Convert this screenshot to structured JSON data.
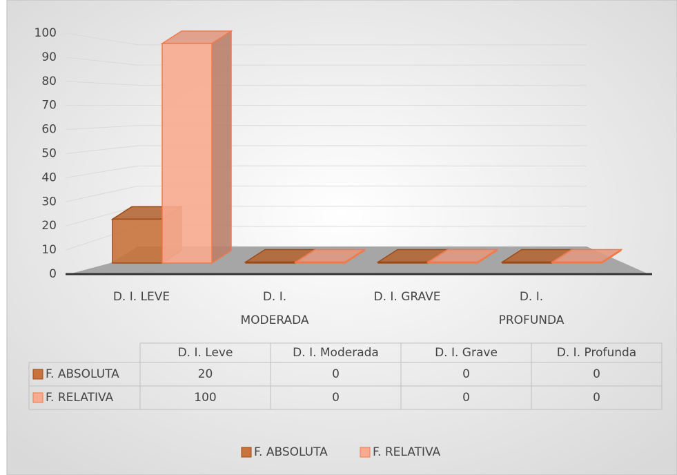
{
  "chart_data": {
    "type": "bar3d",
    "categories": [
      "D. I. LEVE",
      "D. I. MODERADA",
      "D. I. GRAVE",
      "D. I. PROFUNDA"
    ],
    "table_header": [
      "D. I. Leve",
      "D. I. Moderada",
      "D. I. Grave",
      "D. I. Profunda"
    ],
    "series": [
      {
        "name": "F. ABSOLUTA",
        "color": "#c8733c",
        "values": [
          20,
          0,
          0,
          0
        ]
      },
      {
        "name": "F. RELATIVA",
        "color": "#f8ab90",
        "values": [
          100,
          0,
          0,
          0
        ]
      }
    ],
    "ylim": [
      0,
      100
    ],
    "yticks": [
      0,
      10,
      20,
      30,
      40,
      50,
      60,
      70,
      80,
      90,
      100
    ],
    "grid": true,
    "legend": "bottom"
  }
}
